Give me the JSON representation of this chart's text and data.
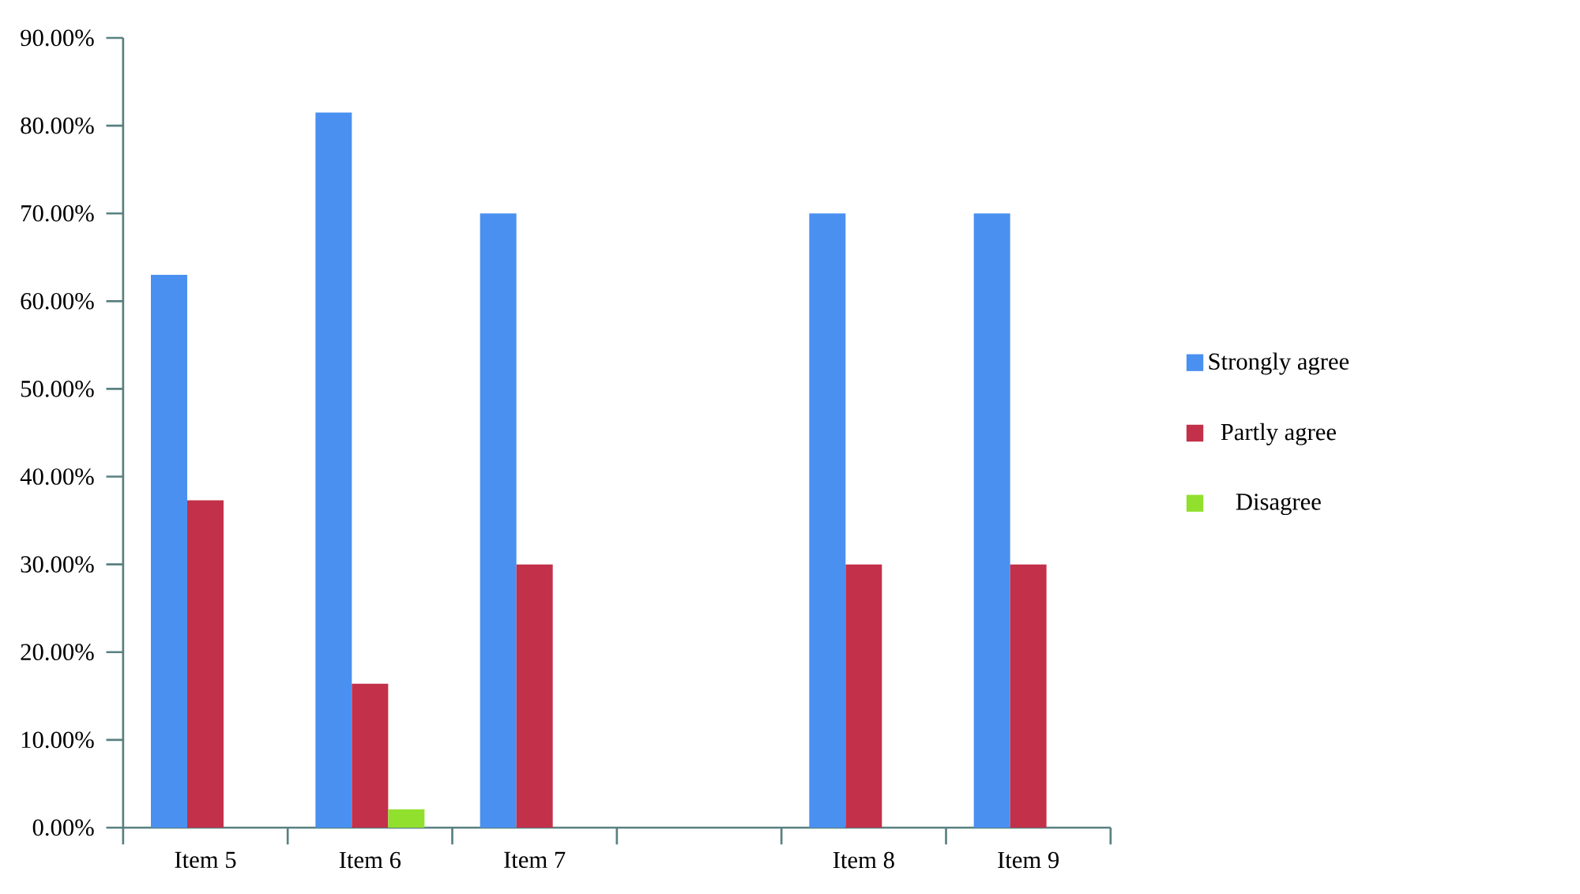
{
  "chart_data": {
    "type": "bar",
    "categories": [
      "Item 5",
      "Item 6",
      "Item 7",
      null,
      "Item 8",
      "Item 9"
    ],
    "series": [
      {
        "name": "Strongly agree",
        "color": "#4a90f0",
        "values": [
          63,
          81.5,
          70,
          null,
          70,
          70
        ]
      },
      {
        "name": "Partly agree",
        "color": "#c3304a",
        "values": [
          37.3,
          16.4,
          30,
          null,
          30,
          30
        ]
      },
      {
        "name": "Disagree",
        "color": "#92e02e",
        "values": [
          null,
          2.1,
          null,
          null,
          null,
          null
        ]
      }
    ],
    "ylim": [
      0,
      90
    ],
    "yticks": [
      {
        "value": 0,
        "label": "0.00%"
      },
      {
        "value": 10,
        "label": "10.00%"
      },
      {
        "value": 20,
        "label": "20.00%"
      },
      {
        "value": 30,
        "label": "30.00%"
      },
      {
        "value": 40,
        "label": "40.00%"
      },
      {
        "value": 50,
        "label": "50.00%"
      },
      {
        "value": 60,
        "label": "60.00%"
      },
      {
        "value": 70,
        "label": "70.00%"
      },
      {
        "value": 80,
        "label": "80.00%"
      },
      {
        "value": 90,
        "label": "90.00%"
      }
    ],
    "grid": false,
    "legend": "right"
  }
}
